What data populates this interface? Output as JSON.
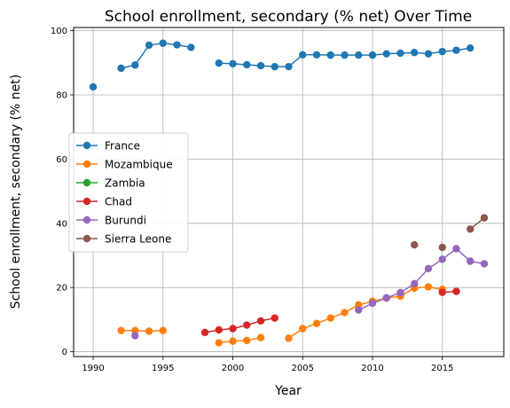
{
  "chart_data": {
    "type": "line",
    "title": "School enrollment, secondary (% net) Over Time",
    "xlabel": "Year",
    "ylabel": "School enrollment, secondary (% net)",
    "xlim": [
      1988.6,
      2019.4
    ],
    "ylim": [
      -1.5,
      101
    ],
    "xticks": [
      1990,
      1995,
      2000,
      2005,
      2010,
      2015
    ],
    "yticks": [
      0,
      20,
      40,
      60,
      80,
      100
    ],
    "grid": true,
    "legend_position": "center-left",
    "series": [
      {
        "name": "France",
        "color": "#1f77b4",
        "points": [
          [
            1990,
            82.5
          ],
          [
            1992,
            88.3
          ],
          [
            1993,
            89.3
          ],
          [
            1994,
            95.5
          ],
          [
            1995,
            96.1
          ],
          [
            1996,
            95.6
          ],
          [
            1997,
            94.8
          ],
          [
            1999,
            89.9
          ],
          [
            2000,
            89.7
          ],
          [
            2001,
            89.4
          ],
          [
            2002,
            89.1
          ],
          [
            2003,
            88.8
          ],
          [
            2004,
            88.8
          ],
          [
            2005,
            92.5
          ],
          [
            2006,
            92.5
          ],
          [
            2007,
            92.4
          ],
          [
            2008,
            92.4
          ],
          [
            2009,
            92.4
          ],
          [
            2010,
            92.4
          ],
          [
            2011,
            92.8
          ],
          [
            2012,
            93.0
          ],
          [
            2013,
            93.2
          ],
          [
            2014,
            92.8
          ],
          [
            2015,
            93.5
          ],
          [
            2016,
            93.9
          ],
          [
            2017,
            94.6
          ]
        ]
      },
      {
        "name": "Mozambique",
        "color": "#ff7f0e",
        "points": [
          [
            1992,
            6.6
          ],
          [
            1993,
            6.6
          ],
          [
            1994,
            6.4
          ],
          [
            1995,
            6.6
          ],
          [
            1999,
            2.8
          ],
          [
            2000,
            3.3
          ],
          [
            2001,
            3.5
          ],
          [
            2002,
            4.4
          ],
          [
            2004,
            4.2
          ],
          [
            2005,
            7.2
          ],
          [
            2006,
            8.8
          ],
          [
            2007,
            10.5
          ],
          [
            2008,
            12.2
          ],
          [
            2009,
            14.6
          ],
          [
            2010,
            15.7
          ],
          [
            2011,
            16.7
          ],
          [
            2012,
            17.3
          ],
          [
            2013,
            19.8
          ],
          [
            2014,
            20.2
          ],
          [
            2015,
            19.4
          ]
        ]
      },
      {
        "name": "Zambia",
        "color": "#2ca02c",
        "points": []
      },
      {
        "name": "Chad",
        "color": "#d62728",
        "points": [
          [
            1998,
            6.0
          ],
          [
            1999,
            6.8
          ],
          [
            2000,
            7.2
          ],
          [
            2001,
            8.3
          ],
          [
            2002,
            9.6
          ],
          [
            2003,
            10.5
          ],
          [
            2015,
            18.5
          ],
          [
            2016,
            18.8
          ]
        ]
      },
      {
        "name": "Burundi",
        "color": "#9467bd",
        "points": [
          [
            1993,
            5.0
          ],
          [
            2009,
            13.0
          ],
          [
            2010,
            15.1
          ],
          [
            2011,
            16.8
          ],
          [
            2012,
            18.4
          ],
          [
            2013,
            21.2
          ],
          [
            2014,
            25.9
          ],
          [
            2015,
            28.8
          ],
          [
            2016,
            32.1
          ],
          [
            2017,
            28.2
          ],
          [
            2018,
            27.4
          ]
        ]
      },
      {
        "name": "Sierra Leone",
        "color": "#8c564b",
        "points": [
          [
            2013,
            33.3
          ],
          [
            2015,
            32.5
          ],
          [
            2017,
            38.2
          ],
          [
            2018,
            41.7
          ]
        ]
      }
    ]
  }
}
